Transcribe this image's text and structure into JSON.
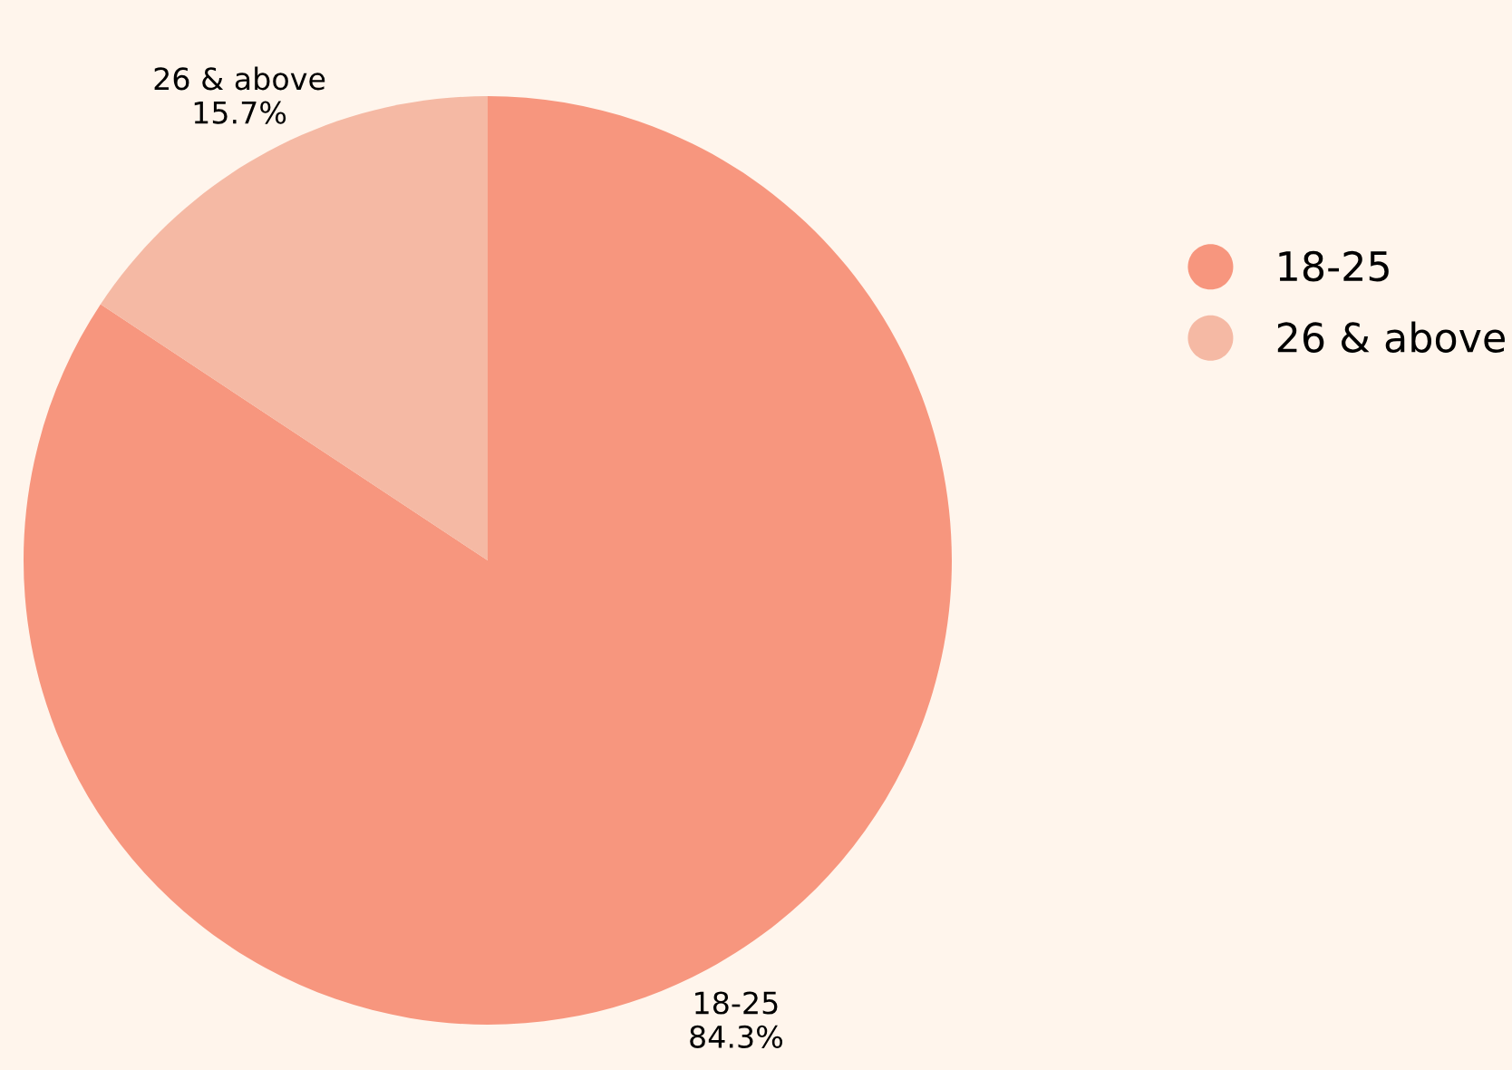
{
  "chart_data": {
    "type": "pie",
    "categories": [
      "18-25",
      "26 & above"
    ],
    "values": [
      84.3,
      15.7
    ],
    "colors": [
      "#f7967e",
      "#f5b9a4"
    ],
    "value_labels": [
      "84.3%",
      "15.7%"
    ],
    "legend": "right"
  }
}
